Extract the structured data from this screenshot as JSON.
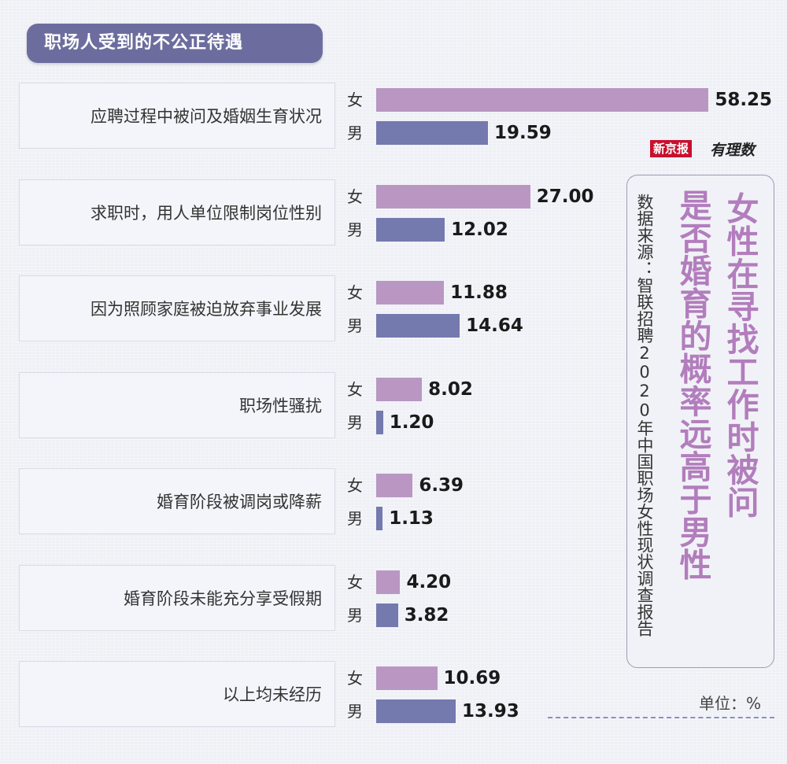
{
  "title": "职场人受到的不公正待遇",
  "logo": {
    "brand": "新京报",
    "script": "有理数"
  },
  "headline": {
    "line1": "女性在寻找工作时被问",
    "line2": "是否婚育的概率远高于男性"
  },
  "source": "数据来源：智联招聘2020年中国职场女性现状调查报告",
  "unit_label": "单位：%",
  "colors": {
    "female": "#b997c2",
    "male": "#7479ae",
    "title_bg": "#6c6d9e",
    "headline": "#b27dbd"
  },
  "chart_data": {
    "type": "bar",
    "orientation": "horizontal",
    "unit": "%",
    "categories": [
      "应聘过程中被问及婚姻生育状况",
      "求职时，用人单位限制岗位性别",
      "因为照顾家庭被迫放弃事业发展",
      "职场性骚扰",
      "婚育阶段被调岗或降薪",
      "婚育阶段未能充分享受假期",
      "以上均未经历"
    ],
    "series": [
      {
        "name": "女",
        "values": [
          58.25,
          27.0,
          11.88,
          8.02,
          6.39,
          4.2,
          10.69
        ],
        "labels": [
          "58.25",
          "27.00",
          "11.88",
          "8.02",
          "6.39",
          "4.20",
          "10.69"
        ]
      },
      {
        "name": "男",
        "values": [
          19.59,
          12.02,
          14.64,
          1.2,
          1.13,
          3.82,
          13.93
        ],
        "labels": [
          "19.59",
          "12.02",
          "14.64",
          "1.20",
          "1.13",
          "3.82",
          "13.93"
        ]
      }
    ]
  }
}
